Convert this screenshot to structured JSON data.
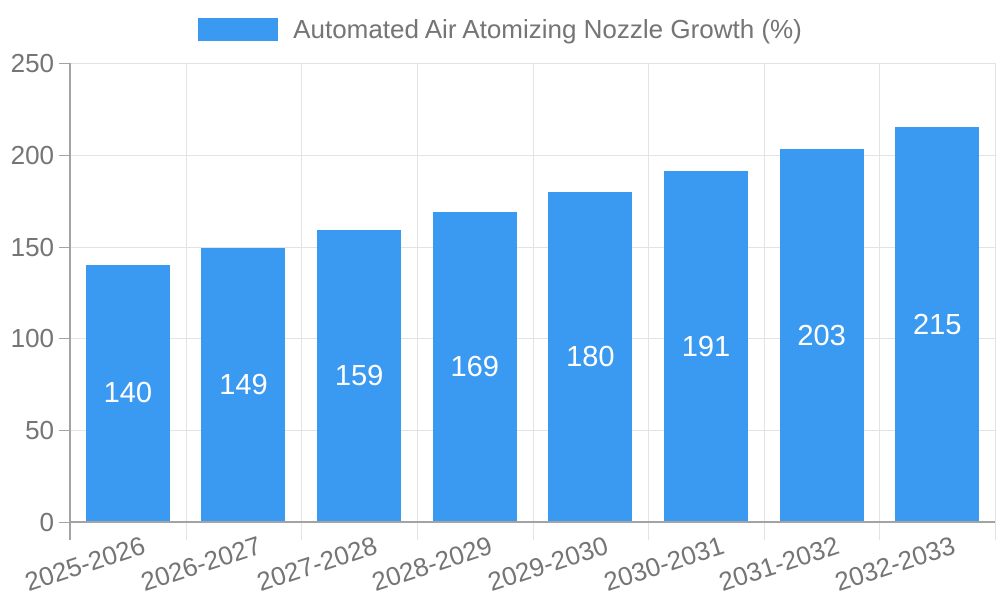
{
  "chart_data": {
    "type": "bar",
    "title": "Automated Air Atomizing Nozzle Growth (%)",
    "legend_position": "top",
    "categories": [
      "2025-2026",
      "2026-2027",
      "2027-2028",
      "2028-2029",
      "2029-2030",
      "2030-2031",
      "2031-2032",
      "2032-2033"
    ],
    "values": [
      140,
      149,
      159,
      169,
      180,
      191,
      203,
      215
    ],
    "value_labels": [
      "140",
      "149",
      "159",
      "169",
      "180",
      "191",
      "203",
      "215"
    ],
    "xlabel": "",
    "ylabel": "",
    "ylim": [
      0,
      250
    ],
    "yticks": [
      0,
      50,
      100,
      150,
      200,
      250
    ],
    "grid": true,
    "colors": {
      "bar": "#3a99f1",
      "value_label": "#ffffff",
      "axis_text": "#757575",
      "grid_line": "#e3e3e3",
      "axis_line": "#a3a3a3",
      "background": "#ffffff"
    }
  }
}
